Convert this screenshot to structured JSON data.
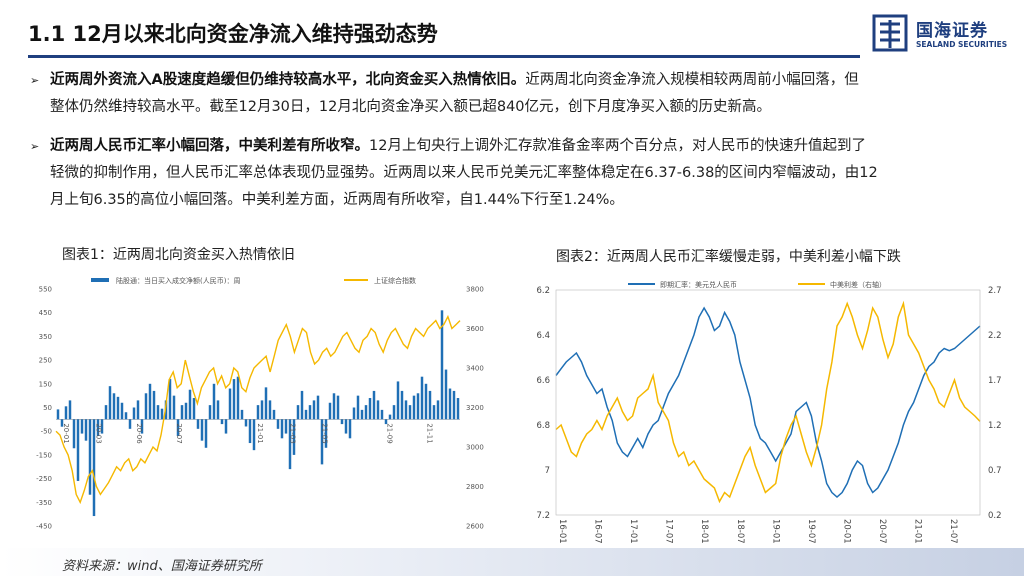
{
  "title": "1.1 12月以来北向资金净流入维持强劲态势",
  "logo": {
    "cn": "国海证券",
    "en": "SEALAND SECURITIES"
  },
  "bullets": [
    {
      "bold": "近两周外资流入A股速度趋缓但仍维持较高水平，北向资金买入热情依旧。",
      "line1": "近两周北向资金净流入规模相较两周前小幅回落，但",
      "line2": "整体仍然维持较高水平。截至12月30日，12月北向资金净买入额已超840亿元，创下月度净买入额的历史新高。"
    },
    {
      "bold": "近两周人民币汇率小幅回落，中美利差有所收窄。",
      "line1": "12月上旬央行上调外汇存款准备金率两个百分点，对人民币的快速升值起到了",
      "line2": "轻微的抑制作用，但人民币汇率总体表现仍显强势。近两周以来人民币兑美元汇率整体稳定在6.37-6.38的区间内窄幅波动，由12",
      "line3": "月上旬6.35的高位小幅回落。中美利差方面，近两周有所收窄，自1.44%下行至1.24%。"
    }
  ],
  "chart1_title": "图表1：近两周北向资金买入热情依旧",
  "chart2_title": "图表2：近两周人民币汇率缓慢走弱，中美利差小幅下跌",
  "source": "资料来源：wind、国海证券研究所",
  "colors": {
    "blue": "#1f6fb5",
    "gold": "#f5b800",
    "navy": "#1f3f7f"
  },
  "chart_data": [
    {
      "type": "bar+line",
      "legend": [
        "陆股通：当日买入成交净额(人民币)：周",
        "上证综合指数"
      ],
      "y_left_ticks": [
        "550",
        "450",
        "350",
        "250",
        "150",
        "50",
        "-50",
        "-150",
        "-250",
        "-350",
        "-450"
      ],
      "y_left_range": [
        -450,
        550
      ],
      "y_right_ticks": [
        "3800",
        "3600",
        "3400",
        "3200",
        "3000",
        "2800",
        "2600"
      ],
      "y_right_range": [
        2600,
        3800
      ],
      "x_ticks": [
        "20-01",
        "20-03",
        "20-06",
        "20-07",
        "21-01",
        "21-03",
        "21-05",
        "21-09",
        "21-11"
      ],
      "bars": [
        42,
        -31,
        55,
        80,
        -122,
        -260,
        -60,
        -90,
        -318,
        -408,
        -70,
        -60,
        60,
        140,
        110,
        95,
        70,
        30,
        -40,
        50,
        80,
        -60,
        110,
        150,
        120,
        60,
        45,
        80,
        170,
        100,
        -70,
        60,
        70,
        125,
        90,
        -40,
        -90,
        -120,
        60,
        150,
        80,
        -20,
        -60,
        130,
        170,
        180,
        40,
        -30,
        -100,
        -130,
        60,
        80,
        135,
        80,
        40,
        -40,
        -80,
        -60,
        -210,
        -150,
        60,
        120,
        40,
        60,
        80,
        100,
        -190,
        -120,
        70,
        110,
        100,
        -20,
        -60,
        -80,
        50,
        100,
        40,
        60,
        90,
        120,
        80,
        40,
        -20,
        20,
        60,
        160,
        120,
        80,
        60,
        100,
        110,
        180,
        150,
        120,
        60,
        80,
        460,
        210,
        130,
        120,
        90
      ],
      "line": [
        3080,
        3060,
        3000,
        2960,
        2880,
        2760,
        2720,
        2780,
        2850,
        2880,
        2800,
        2760,
        2790,
        2820,
        2860,
        2900,
        2880,
        2920,
        2940,
        2880,
        2900,
        2940,
        2920,
        2960,
        3000,
        2980,
        3060,
        3180,
        3340,
        3380,
        3300,
        3320,
        3440,
        3360,
        3280,
        3220,
        3300,
        3340,
        3380,
        3400,
        3320,
        3360,
        3300,
        3320,
        3400,
        3380,
        3300,
        3280,
        3350,
        3400,
        3420,
        3440,
        3460,
        3380,
        3460,
        3540,
        3580,
        3620,
        3560,
        3480,
        3540,
        3600,
        3580,
        3480,
        3420,
        3440,
        3480,
        3500,
        3460,
        3480,
        3520,
        3560,
        3580,
        3540,
        3500,
        3480,
        3540,
        3560,
        3600,
        3580,
        3520,
        3480,
        3540,
        3580,
        3600,
        3560,
        3520,
        3500,
        3560,
        3600,
        3580,
        3560,
        3600,
        3620,
        3640,
        3600,
        3620,
        3660,
        3600,
        3620,
        3640
      ]
    },
    {
      "type": "line",
      "legend": [
        "即期汇率：美元兑人民币",
        "中美利差（右轴）"
      ],
      "y_left_ticks": [
        "6.2",
        "6.4",
        "6.6",
        "6.8",
        "7",
        "7.2"
      ],
      "y_left_range": [
        6.2,
        7.2
      ],
      "y_left_inverted": true,
      "y_right_ticks": [
        "2.7",
        "2.2",
        "1.7",
        "1.2",
        "0.7",
        "0.2"
      ],
      "y_right_range": [
        0.2,
        2.7
      ],
      "x_ticks": [
        "16-01",
        "16-07",
        "17-01",
        "17-07",
        "18-01",
        "18-07",
        "19-01",
        "19-07",
        "20-01",
        "20-07",
        "21-01",
        "21-07"
      ],
      "usd_cny": [
        6.58,
        6.55,
        6.52,
        6.5,
        6.48,
        6.52,
        6.58,
        6.62,
        6.66,
        6.64,
        6.72,
        6.78,
        6.88,
        6.92,
        6.94,
        6.9,
        6.86,
        6.9,
        6.84,
        6.8,
        6.78,
        6.72,
        6.66,
        6.62,
        6.58,
        6.52,
        6.46,
        6.4,
        6.32,
        6.28,
        6.32,
        6.38,
        6.36,
        6.3,
        6.34,
        6.4,
        6.52,
        6.6,
        6.68,
        6.8,
        6.86,
        6.88,
        6.92,
        6.96,
        6.92,
        6.88,
        6.84,
        6.74,
        6.72,
        6.7,
        6.76,
        6.88,
        6.96,
        7.06,
        7.1,
        7.12,
        7.1,
        7.06,
        7.0,
        6.96,
        6.98,
        7.06,
        7.1,
        7.08,
        7.04,
        7.0,
        6.94,
        6.88,
        6.8,
        6.74,
        6.7,
        6.64,
        6.58,
        6.54,
        6.52,
        6.48,
        6.46,
        6.47,
        6.46,
        6.44,
        6.42,
        6.4,
        6.38,
        6.36
      ],
      "spread": [
        1.15,
        1.2,
        1.05,
        0.9,
        0.85,
        1.0,
        1.1,
        1.15,
        1.25,
        1.15,
        1.3,
        1.4,
        1.5,
        1.35,
        1.25,
        1.3,
        1.5,
        1.55,
        1.6,
        1.75,
        1.45,
        1.35,
        1.25,
        1.0,
        0.85,
        0.9,
        0.75,
        0.8,
        0.7,
        0.6,
        0.55,
        0.5,
        0.35,
        0.45,
        0.4,
        0.55,
        0.7,
        0.85,
        0.95,
        0.75,
        0.6,
        0.45,
        0.5,
        0.55,
        0.85,
        1.05,
        1.2,
        1.3,
        1.1,
        0.9,
        0.75,
        0.95,
        1.2,
        1.6,
        1.9,
        2.3,
        2.4,
        2.55,
        2.4,
        2.2,
        2.05,
        2.25,
        2.5,
        2.4,
        2.15,
        1.95,
        2.1,
        2.4,
        2.55,
        2.2,
        2.1,
        2.0,
        1.85,
        1.7,
        1.6,
        1.45,
        1.4,
        1.55,
        1.7,
        1.5,
        1.4,
        1.35,
        1.3,
        1.24
      ]
    }
  ]
}
